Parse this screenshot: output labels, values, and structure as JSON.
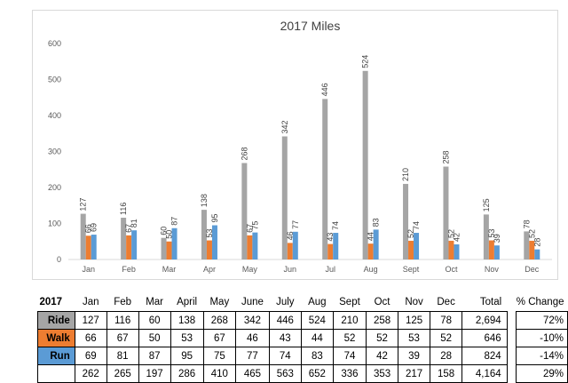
{
  "chart_data": {
    "type": "bar",
    "title": "2017 Miles",
    "categories": [
      "Jan",
      "Feb",
      "Mar",
      "Apr",
      "May",
      "Jun",
      "Jul",
      "Aug",
      "Sept",
      "Oct",
      "Nov",
      "Dec"
    ],
    "ylim": [
      0,
      600
    ],
    "yticks": [
      0,
      100,
      200,
      300,
      400,
      500,
      600
    ],
    "grid": false,
    "series": [
      {
        "name": "Ride",
        "color": "#a5a5a5",
        "values": [
          127,
          116,
          60,
          138,
          268,
          342,
          446,
          524,
          210,
          258,
          125,
          78
        ]
      },
      {
        "name": "Walk",
        "color": "#ed7d31",
        "values": [
          66,
          67,
          50,
          53,
          67,
          46,
          43,
          44,
          52,
          52,
          53,
          52
        ]
      },
      {
        "name": "Run",
        "color": "#5b9bd5",
        "values": [
          69,
          81,
          87,
          95,
          75,
          77,
          74,
          83,
          74,
          42,
          39,
          28
        ]
      }
    ]
  },
  "table": {
    "year": "2017",
    "months": [
      "Jan",
      "Feb",
      "Mar",
      "April",
      "May",
      "June",
      "July",
      "Aug",
      "Sept",
      "Oct",
      "Nov",
      "Dec"
    ],
    "total_label": "Total",
    "pct_label": "% Change",
    "rows": [
      {
        "label": "Ride",
        "color": "#a5a5a5",
        "values": [
          "127",
          "116",
          "60",
          "138",
          "268",
          "342",
          "446",
          "524",
          "210",
          "258",
          "125",
          "78"
        ],
        "total": "2,694",
        "pct": "72%"
      },
      {
        "label": "Walk",
        "color": "#ed7d31",
        "values": [
          "66",
          "67",
          "50",
          "53",
          "67",
          "46",
          "43",
          "44",
          "52",
          "52",
          "53",
          "52"
        ],
        "total": "646",
        "pct": "-10%"
      },
      {
        "label": "Run",
        "color": "#5b9bd5",
        "values": [
          "69",
          "81",
          "87",
          "95",
          "75",
          "77",
          "74",
          "83",
          "74",
          "42",
          "39",
          "28"
        ],
        "total": "824",
        "pct": "-14%"
      },
      {
        "label": "",
        "color": "#ffffff",
        "values": [
          "262",
          "265",
          "197",
          "286",
          "410",
          "465",
          "563",
          "652",
          "336",
          "353",
          "217",
          "158"
        ],
        "total": "4,164",
        "pct": "29%"
      }
    ]
  }
}
